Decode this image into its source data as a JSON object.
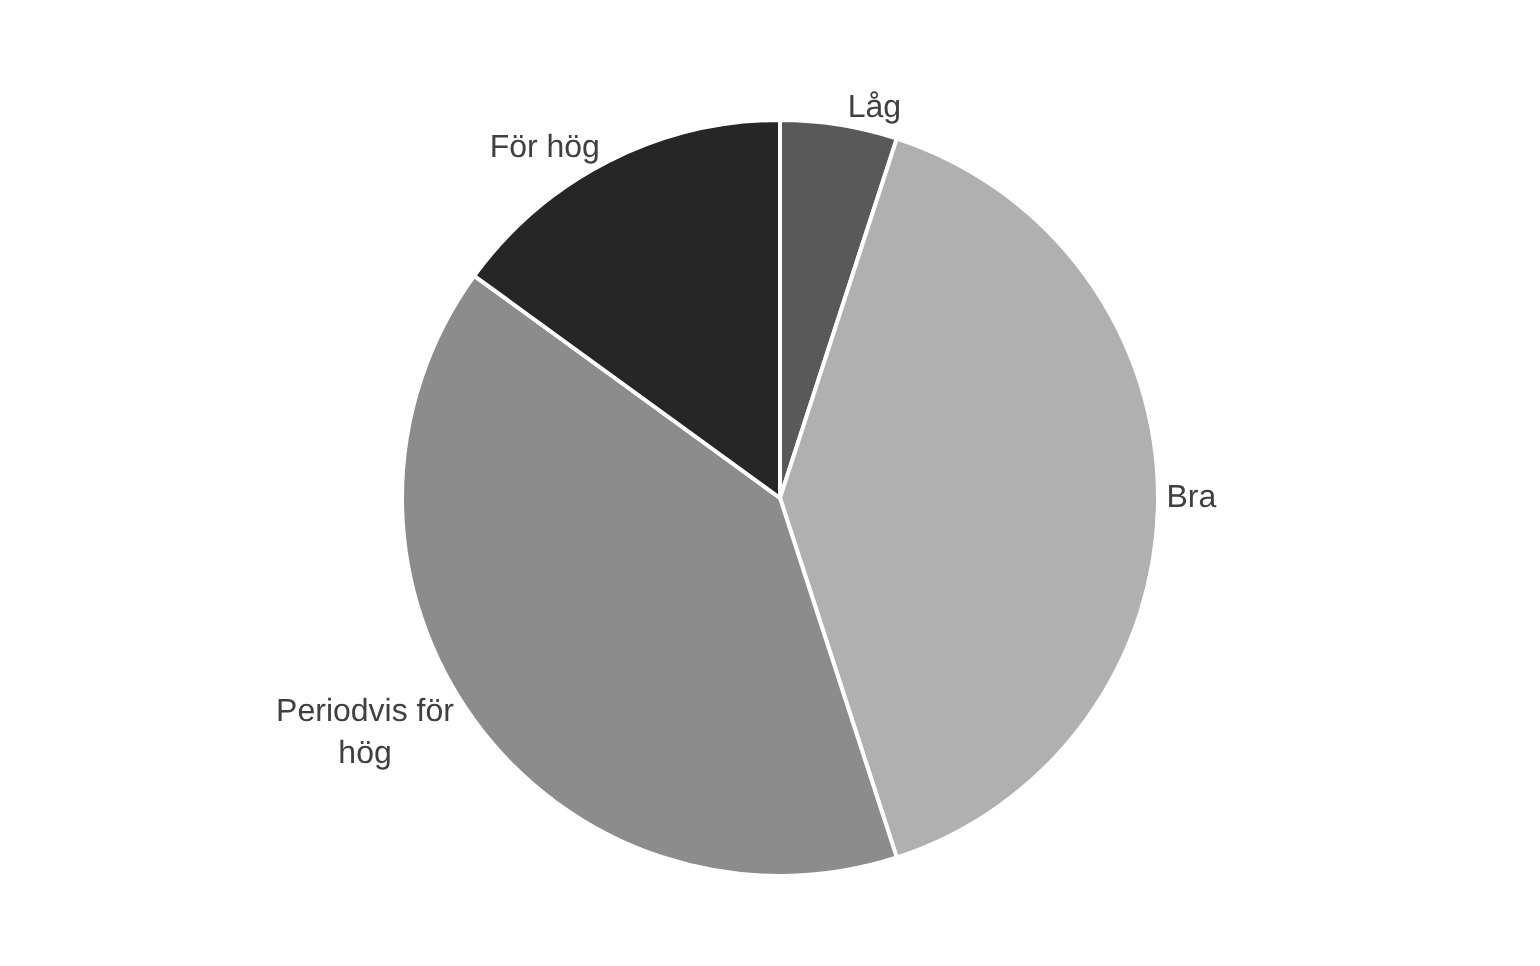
{
  "chart_data": {
    "type": "pie",
    "categories": [
      "Låg",
      "Bra",
      "Periodvis för hög",
      "För hög"
    ],
    "values": [
      5,
      40,
      40,
      15
    ],
    "colors": [
      "#595959",
      "#b0b0b0",
      "#8c8c8c",
      "#262626"
    ],
    "legend": false
  }
}
